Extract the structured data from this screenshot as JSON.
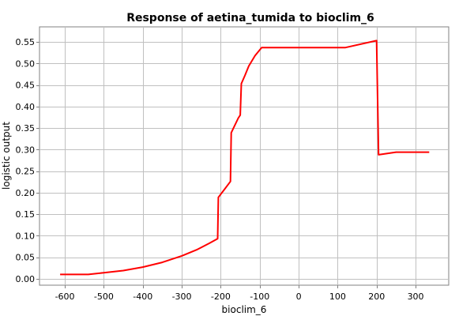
{
  "chart_data": {
    "type": "line",
    "title": "Response of aetina_tumida to bioclim_6",
    "xlabel": "bioclim_6",
    "ylabel": "logistic output",
    "xlim": [
      -665,
      385
    ],
    "ylim": [
      -0.015,
      0.585
    ],
    "x_ticks": [
      -600,
      -500,
      -400,
      -300,
      -200,
      -100,
      0,
      100,
      200,
      300
    ],
    "x_tick_labels": [
      "-600",
      "-500",
      "-400",
      "-300",
      "-200",
      "-100",
      "0",
      "100",
      "200",
      "300"
    ],
    "y_ticks": [
      0.0,
      0.05,
      0.1,
      0.15,
      0.2,
      0.25,
      0.3,
      0.35,
      0.4,
      0.45,
      0.5,
      0.55
    ],
    "y_tick_labels": [
      "0.00",
      "0.05",
      "0.10",
      "0.15",
      "0.20",
      "0.25",
      "0.30",
      "0.35",
      "0.40",
      "0.45",
      "0.50",
      "0.55"
    ],
    "grid": true,
    "series": [
      {
        "color": "#ff0000",
        "points": [
          [
            -612,
            0.01
          ],
          [
            -540,
            0.01
          ],
          [
            -500,
            0.014
          ],
          [
            -450,
            0.019
          ],
          [
            -400,
            0.027
          ],
          [
            -350,
            0.038
          ],
          [
            -300,
            0.053
          ],
          [
            -260,
            0.068
          ],
          [
            -230,
            0.082
          ],
          [
            -208,
            0.093
          ],
          [
            -206,
            0.189
          ],
          [
            -190,
            0.208
          ],
          [
            -175,
            0.226
          ],
          [
            -173,
            0.339
          ],
          [
            -155,
            0.373
          ],
          [
            -150,
            0.38
          ],
          [
            -147,
            0.453
          ],
          [
            -138,
            0.472
          ],
          [
            -128,
            0.494
          ],
          [
            -112,
            0.518
          ],
          [
            -95,
            0.537
          ],
          [
            120,
            0.537
          ],
          [
            200,
            0.553
          ],
          [
            205,
            0.288
          ],
          [
            250,
            0.294
          ],
          [
            335,
            0.294
          ]
        ]
      }
    ]
  }
}
